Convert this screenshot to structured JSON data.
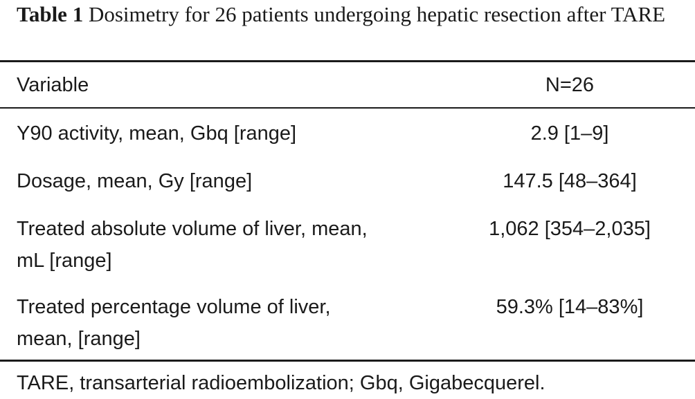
{
  "table": {
    "label": "Table 1",
    "title": "Dosimetry for 26 patients undergoing hepatic resection after TARE",
    "headers": [
      "Variable",
      "N=26"
    ],
    "rows": [
      {
        "variable_line1": "Y90 activity, mean, Gbq [range]",
        "variable_line2": "",
        "value": "2.9 [1–9]"
      },
      {
        "variable_line1": "Dosage, mean, Gy [range]",
        "variable_line2": "",
        "value": "147.5 [48–364]"
      },
      {
        "variable_line1": "Treated absolute volume of liver, mean,",
        "variable_line2": "mL [range]",
        "value": "1,062 [354–2,035]"
      },
      {
        "variable_line1": "Treated percentage volume of liver,",
        "variable_line2": "mean, [range]",
        "value": "59.3% [14–83%]"
      }
    ],
    "footnote": "TARE, transarterial radioembolization; Gbq, Gigabecquerel."
  }
}
